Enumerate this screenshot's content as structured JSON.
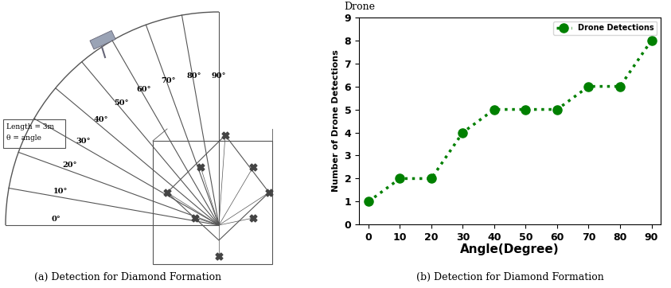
{
  "chart_data": {
    "type": "line",
    "title": "Drone",
    "x": [
      0,
      10,
      20,
      30,
      40,
      50,
      60,
      70,
      80,
      90
    ],
    "series": [
      {
        "name": "Drone Detections",
        "color": "#008000",
        "marker": "o",
        "line_style": "dotted",
        "values": [
          1,
          2,
          2,
          4,
          5,
          5,
          5,
          6,
          6,
          8
        ]
      }
    ],
    "x_label": "Angle(Degree)",
    "y_label": "Number of Drone Detections",
    "xlim": [
      -3,
      93
    ],
    "xticks": [
      0,
      10,
      20,
      30,
      40,
      50,
      60,
      70,
      80,
      90
    ],
    "ylim": [
      0,
      9
    ],
    "yticks": [
      0,
      1,
      2,
      3,
      4,
      5,
      6,
      7,
      8,
      9
    ],
    "legend": "upper right",
    "grid": false,
    "caption": "(b) Detection for Diamond Formation"
  },
  "diagram": {
    "info_box": [
      "Length = 3m",
      "θ = angle"
    ],
    "angles": [
      {
        "value": 0,
        "label": "0°"
      },
      {
        "value": 10,
        "label": "10°"
      },
      {
        "value": 20,
        "label": "20°"
      },
      {
        "value": 30,
        "label": "30°"
      },
      {
        "value": 40,
        "label": "40°"
      },
      {
        "value": 50,
        "label": "50°"
      },
      {
        "value": 60,
        "label": "60°"
      },
      {
        "value": 70,
        "label": "70°"
      },
      {
        "value": 80,
        "label": "80°"
      },
      {
        "value": 90,
        "label": "90°"
      }
    ],
    "caption": "(a) Detection for Diamond Formation"
  }
}
